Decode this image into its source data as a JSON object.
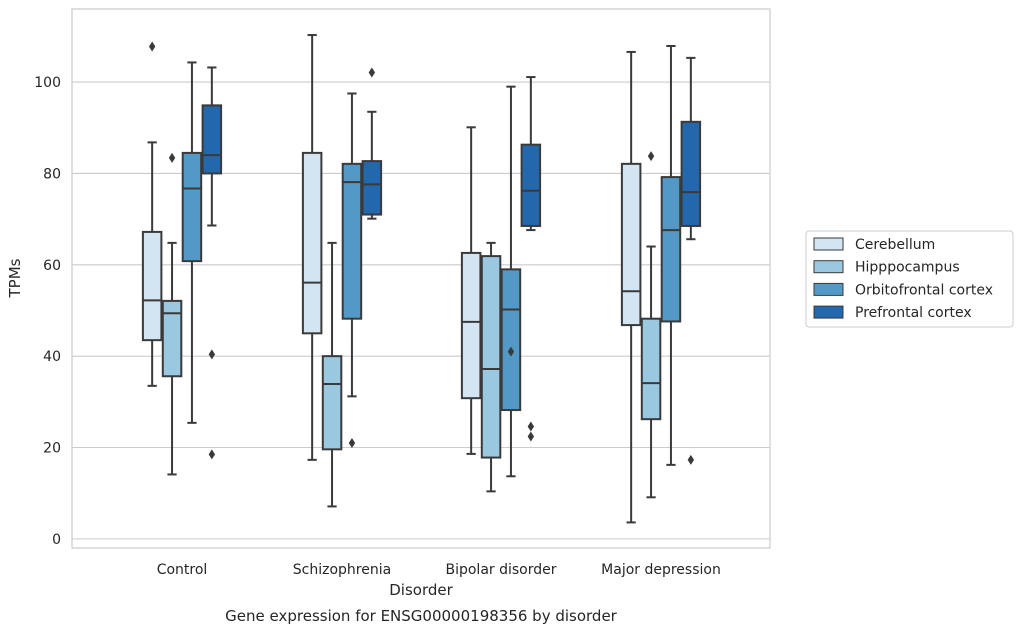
{
  "caption": "Gene expression for ENSG00000198356 by disorder",
  "chart_data": {
    "type": "box",
    "title": "",
    "xlabel": "Disorder",
    "ylabel": "TPMs",
    "categories": [
      "Control",
      "Schizophrenia",
      "Bipolar disorder",
      "Major depression"
    ],
    "ylim": [
      -2,
      116
    ],
    "yticks": [
      0,
      20,
      40,
      60,
      80,
      100
    ],
    "grid": true,
    "legend_position": "outside-right",
    "series": [
      {
        "name": "Cerebellum",
        "color": "#d3e4f3",
        "boxes": [
          {
            "whislo": 33.5,
            "q1": 43.5,
            "median": 52.2,
            "q3": 67.2,
            "whishi": 86.8,
            "fliers": [
              107.8
            ]
          },
          {
            "whislo": 17.3,
            "q1": 45,
            "median": 56.1,
            "q3": 84.5,
            "whishi": 110.3,
            "fliers": []
          },
          {
            "whislo": 18.6,
            "q1": 30.8,
            "median": 47.5,
            "q3": 62.6,
            "whishi": 90.1,
            "fliers": []
          },
          {
            "whislo": 3.6,
            "q1": 46.8,
            "median": 54.2,
            "q3": 82.1,
            "whishi": 106.6,
            "fliers": []
          }
        ]
      },
      {
        "name": "Hipppocampus",
        "color": "#9ac8e0",
        "boxes": [
          {
            "whislo": 14.1,
            "q1": 35.6,
            "median": 49.4,
            "q3": 52.1,
            "whishi": 64.8,
            "fliers": [
              83.4
            ]
          },
          {
            "whislo": 7.1,
            "q1": 19.6,
            "median": 33.9,
            "q3": 40,
            "whishi": 64.8,
            "fliers": []
          },
          {
            "whislo": 10.4,
            "q1": 17.8,
            "median": 37.2,
            "q3": 61.9,
            "whishi": 64.8,
            "fliers": []
          },
          {
            "whislo": 9.1,
            "q1": 26.2,
            "median": 34.1,
            "q3": 48.2,
            "whishi": 64,
            "fliers": [
              83.8
            ]
          }
        ]
      },
      {
        "name": "Orbitofrontal cortex",
        "color": "#5299c8",
        "boxes": [
          {
            "whislo": 25.4,
            "q1": 60.8,
            "median": 76.7,
            "q3": 84.5,
            "whishi": 104.3,
            "fliers": []
          },
          {
            "whislo": 31.2,
            "q1": 48.2,
            "median": 78.1,
            "q3": 82.1,
            "whishi": 97.5,
            "fliers": [
              21
            ]
          },
          {
            "whislo": 13.7,
            "q1": 28.2,
            "median": 50.2,
            "q3": 59,
            "whishi": 99,
            "fliers": [
              41
            ]
          },
          {
            "whislo": 16.2,
            "q1": 47.6,
            "median": 67.6,
            "q3": 79.2,
            "whishi": 107.9,
            "fliers": []
          }
        ]
      },
      {
        "name": "Prefrontal cortex",
        "color": "#2367ac",
        "boxes": [
          {
            "whislo": 68.6,
            "q1": 80,
            "median": 84,
            "q3": 94.9,
            "whishi": 103.2,
            "fliers": [
              40.4,
              18.5
            ]
          },
          {
            "whislo": 70.1,
            "q1": 71,
            "median": 77.6,
            "q3": 82.7,
            "whishi": 93.5,
            "fliers": [
              102.1
            ]
          },
          {
            "whislo": 67.6,
            "q1": 68.5,
            "median": 76.2,
            "q3": 86.3,
            "whishi": 101.1,
            "fliers": [
              24.6,
              22.4
            ]
          },
          {
            "whislo": 65.6,
            "q1": 68.5,
            "median": 75.9,
            "q3": 91.3,
            "whishi": 105.3,
            "fliers": [
              17.3
            ]
          }
        ]
      }
    ]
  }
}
